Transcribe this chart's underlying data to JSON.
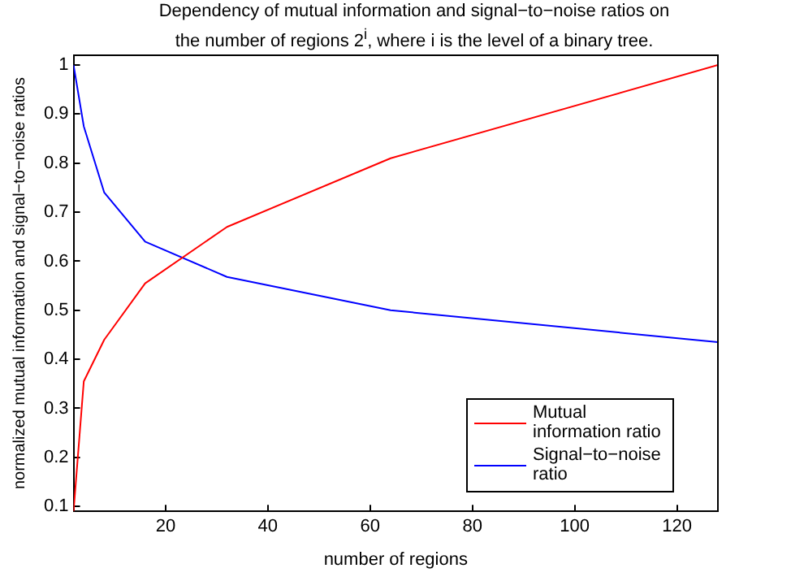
{
  "chart_data": {
    "type": "line",
    "title": "Dependency of mutual information and signal−to−noise ratios on the number of regions 2$^{i}$, where i is the level of a binary tree.",
    "xlabel": "number of regions",
    "ylabel": "normalized mutual information and signal−to−noise ratios",
    "x": [
      2,
      4,
      8,
      16,
      32,
      64,
      128
    ],
    "series": [
      {
        "name": "Mutual information ratio",
        "color": "#ff0000",
        "values": [
          0.09,
          0.355,
          0.44,
          0.555,
          0.67,
          0.81,
          1.0
        ]
      },
      {
        "name": "Signal−to−noise ratio",
        "color": "#0000ff",
        "values": [
          1.0,
          0.875,
          0.74,
          0.64,
          0.568,
          0.5,
          0.435
        ]
      }
    ],
    "xlim": [
      2,
      128
    ],
    "xticks": [
      20,
      40,
      60,
      80,
      100,
      120
    ],
    "ylim": [
      0.09,
      1.02
    ],
    "yticks": [
      0.1,
      0.2,
      0.3,
      0.4,
      0.5,
      0.6,
      0.7,
      0.8,
      0.9,
      1
    ],
    "grid": false,
    "legend": "bottom right",
    "marker": "none",
    "line_style": "solid"
  }
}
